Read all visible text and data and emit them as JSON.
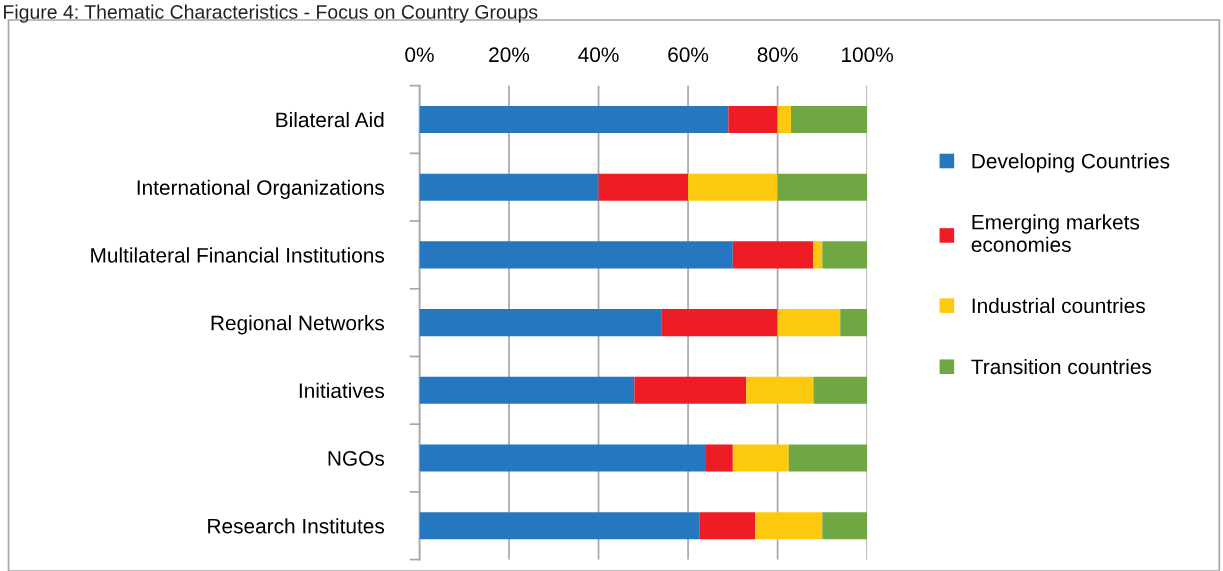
{
  "chart_data": {
    "type": "bar",
    "orientation": "horizontal",
    "stacked": true,
    "title": "Figure 4: Thematic Characteristics - Focus on Country Groups",
    "categories": [
      "Bilateral Aid",
      "International Organizations",
      "Multilateral Financial Institutions",
      "Regional Networks",
      "Initiatives",
      "NGOs",
      "Research Institutes"
    ],
    "series": [
      {
        "name": "Developing Countries",
        "color": "#2577bf",
        "values": [
          69,
          40,
          70,
          54,
          48,
          64,
          62.5
        ]
      },
      {
        "name": "Emerging markets economies",
        "color": "#ee1c25",
        "values": [
          11,
          20,
          18,
          26,
          25,
          6,
          12.5
        ]
      },
      {
        "name": "Industrial countries",
        "color": "#fdc90f",
        "values": [
          3,
          20,
          2,
          14,
          15,
          12.5,
          15
        ]
      },
      {
        "name": "Transition countries",
        "color": "#6fa843",
        "values": [
          17,
          20,
          10,
          6,
          12,
          17.5,
          10
        ]
      }
    ],
    "xlim": [
      0,
      100
    ],
    "xticks": [
      {
        "value": 0,
        "label": "0%"
      },
      {
        "value": 20,
        "label": "20%"
      },
      {
        "value": 40,
        "label": "40%"
      },
      {
        "value": 60,
        "label": "60%"
      },
      {
        "value": 80,
        "label": "80%"
      },
      {
        "value": 100,
        "label": "100%"
      }
    ],
    "grid": "x",
    "legend": "right"
  }
}
